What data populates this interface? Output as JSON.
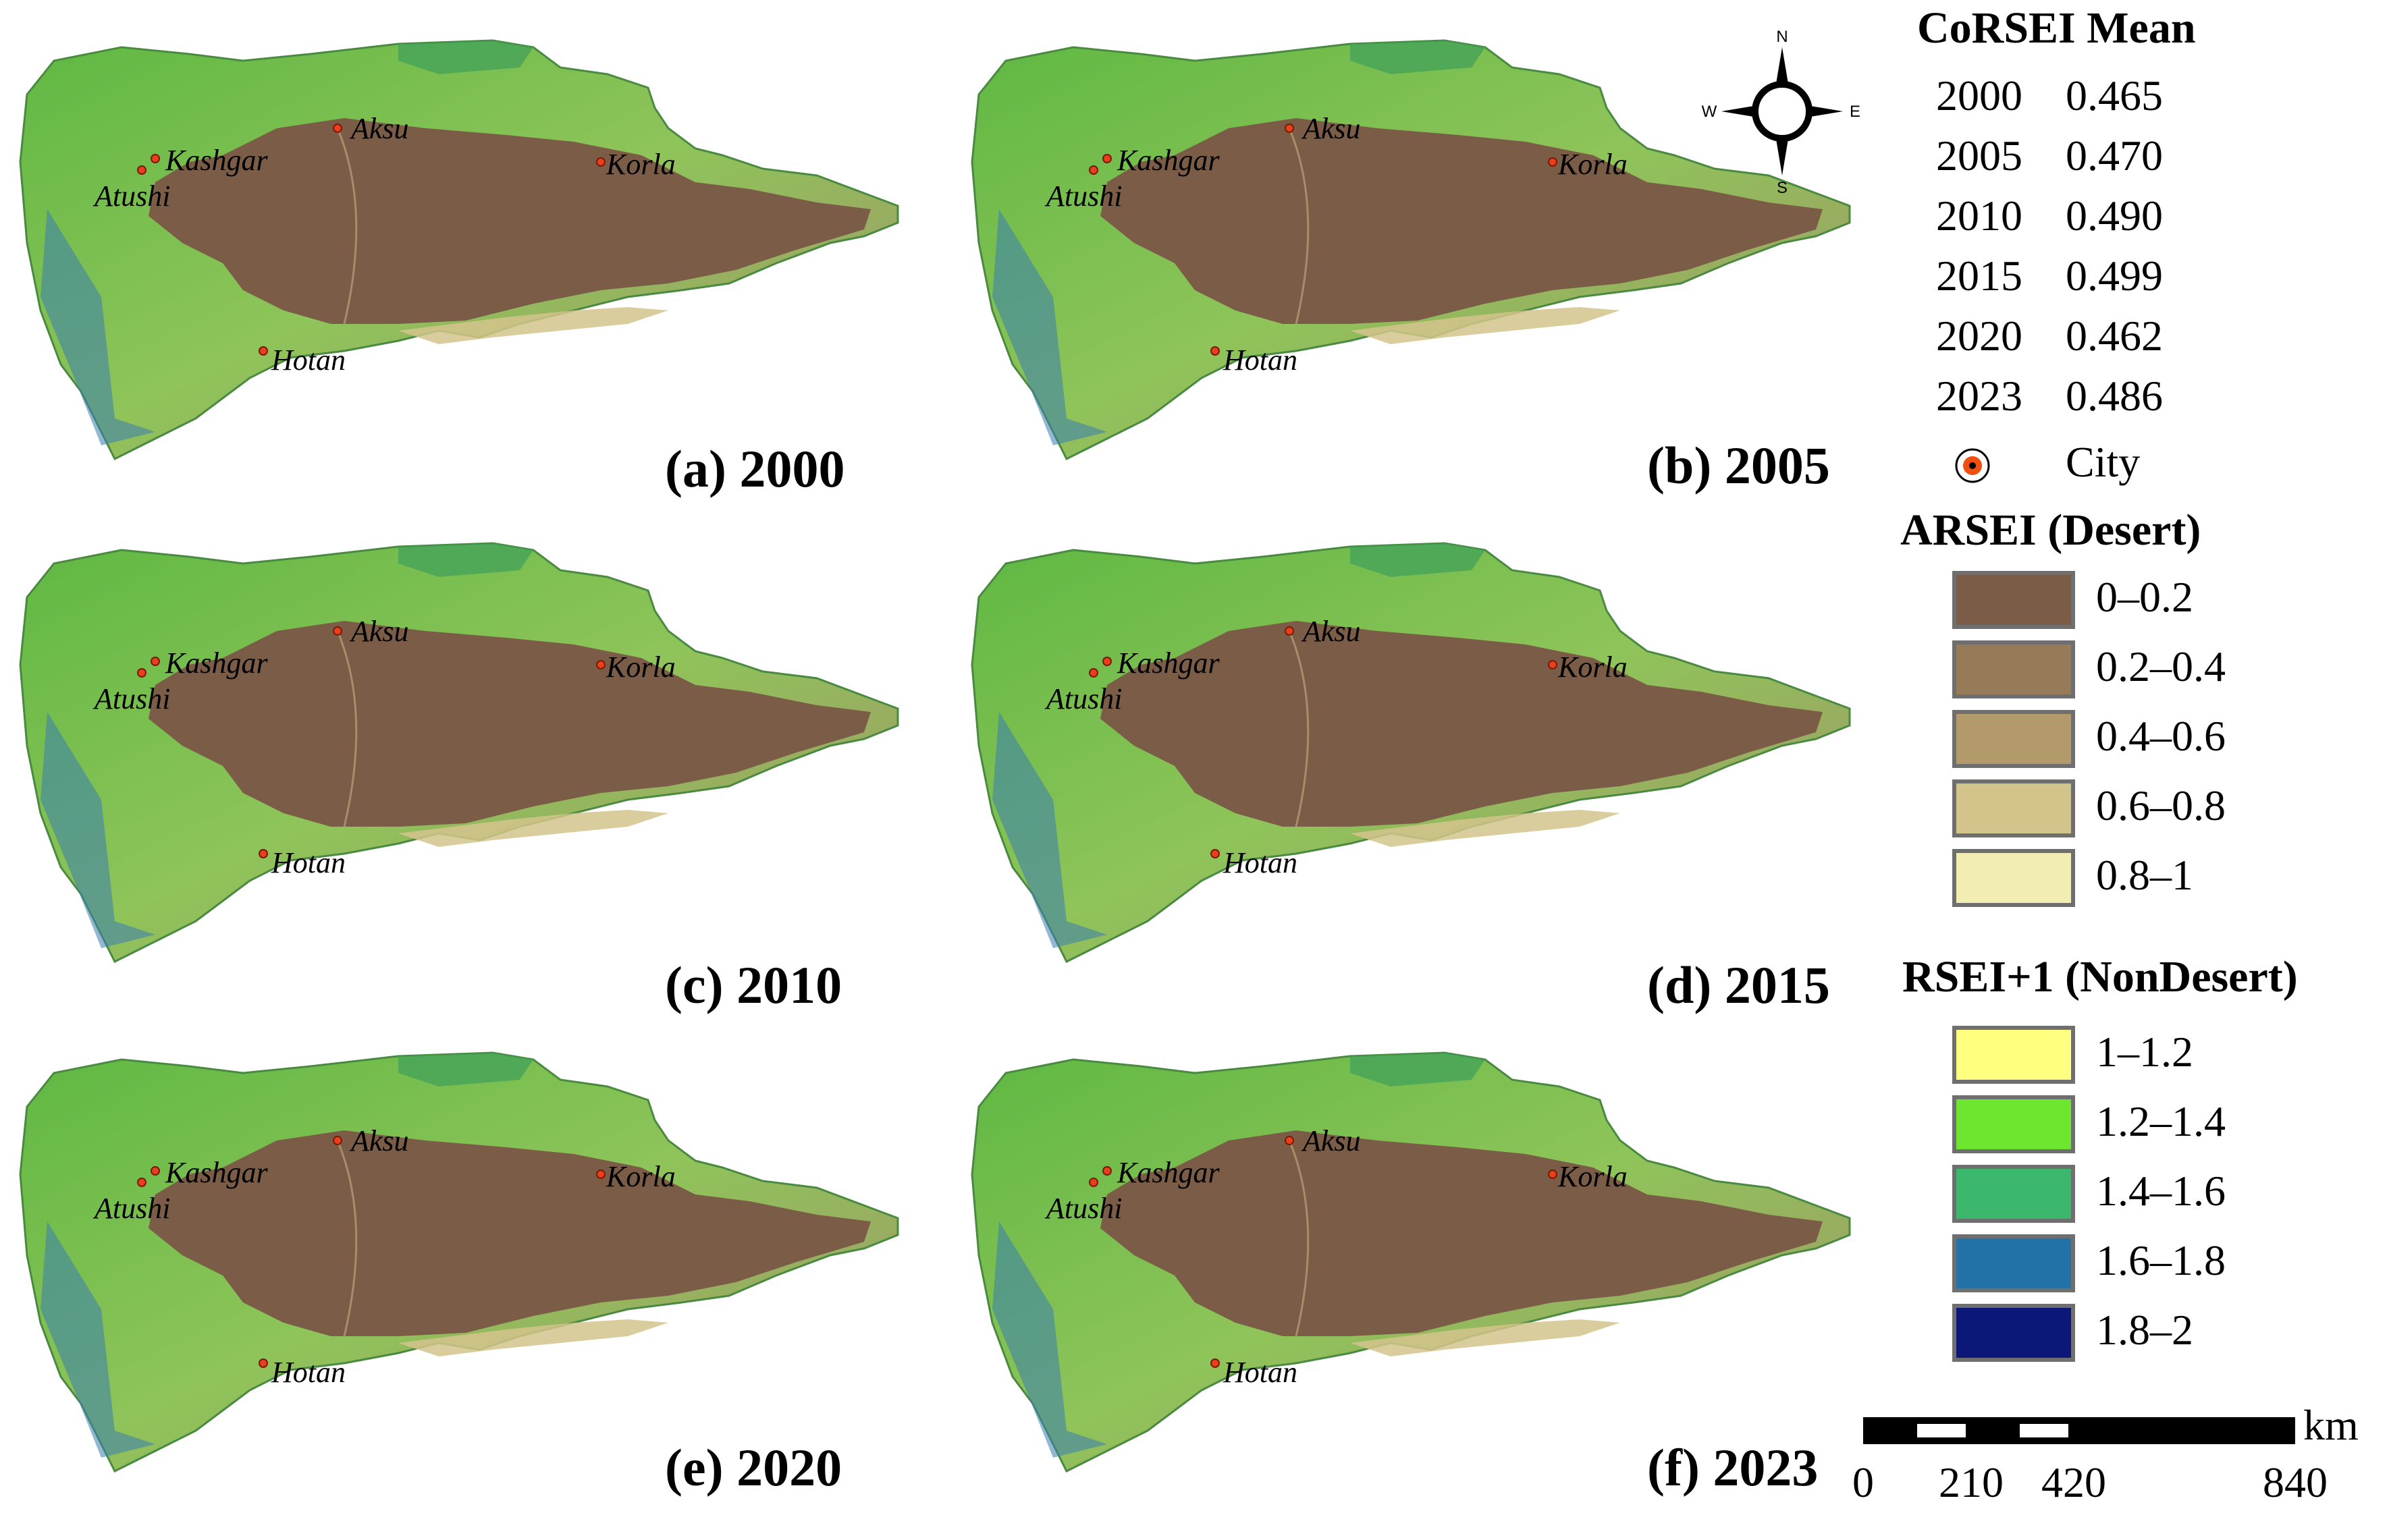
{
  "panels": [
    {
      "label": "(a) 2000"
    },
    {
      "label": "(b) 2005"
    },
    {
      "label": "(c) 2010"
    },
    {
      "label": "(d) 2015"
    },
    {
      "label": "(e) 2020"
    },
    {
      "label": "(f) 2023"
    }
  ],
  "cities": [
    "Aksu",
    "Kashgar",
    "Atushi",
    "Korla",
    "Hotan"
  ],
  "compass": {
    "n": "N",
    "s": "S",
    "e": "E",
    "w": "W"
  },
  "corsei": {
    "title": "CoRSEI Mean",
    "rows": [
      {
        "year": "2000",
        "value": "0.465"
      },
      {
        "year": "2005",
        "value": "0.470"
      },
      {
        "year": "2010",
        "value": "0.490"
      },
      {
        "year": "2015",
        "value": "0.499"
      },
      {
        "year": "2020",
        "value": "0.462"
      },
      {
        "year": "2023",
        "value": "0.486"
      }
    ],
    "city_label": "City"
  },
  "arsei": {
    "title": "ARSEI (Desert)",
    "classes": [
      {
        "label": "0–0.2",
        "color": "#7b5c47"
      },
      {
        "label": "0.2–0.4",
        "color": "#977a58"
      },
      {
        "label": "0.4–0.6",
        "color": "#b39a6a"
      },
      {
        "label": "0.6–0.8",
        "color": "#d3c48c"
      },
      {
        "label": "0.8–1",
        "color": "#f1edb3"
      }
    ]
  },
  "rsei": {
    "title": "RSEI+1 (NonDesert)",
    "classes": [
      {
        "label": "1–1.2",
        "color": "#ffff80"
      },
      {
        "label": "1.2–1.4",
        "color": "#6ce62e"
      },
      {
        "label": "1.4–1.6",
        "color": "#3cb86c"
      },
      {
        "label": "1.6–1.8",
        "color": "#2272a8"
      },
      {
        "label": "1.8–2",
        "color": "#0c1878"
      }
    ]
  },
  "scale": {
    "unit": "km",
    "ticks": [
      "0",
      "210",
      "420",
      "840"
    ]
  }
}
